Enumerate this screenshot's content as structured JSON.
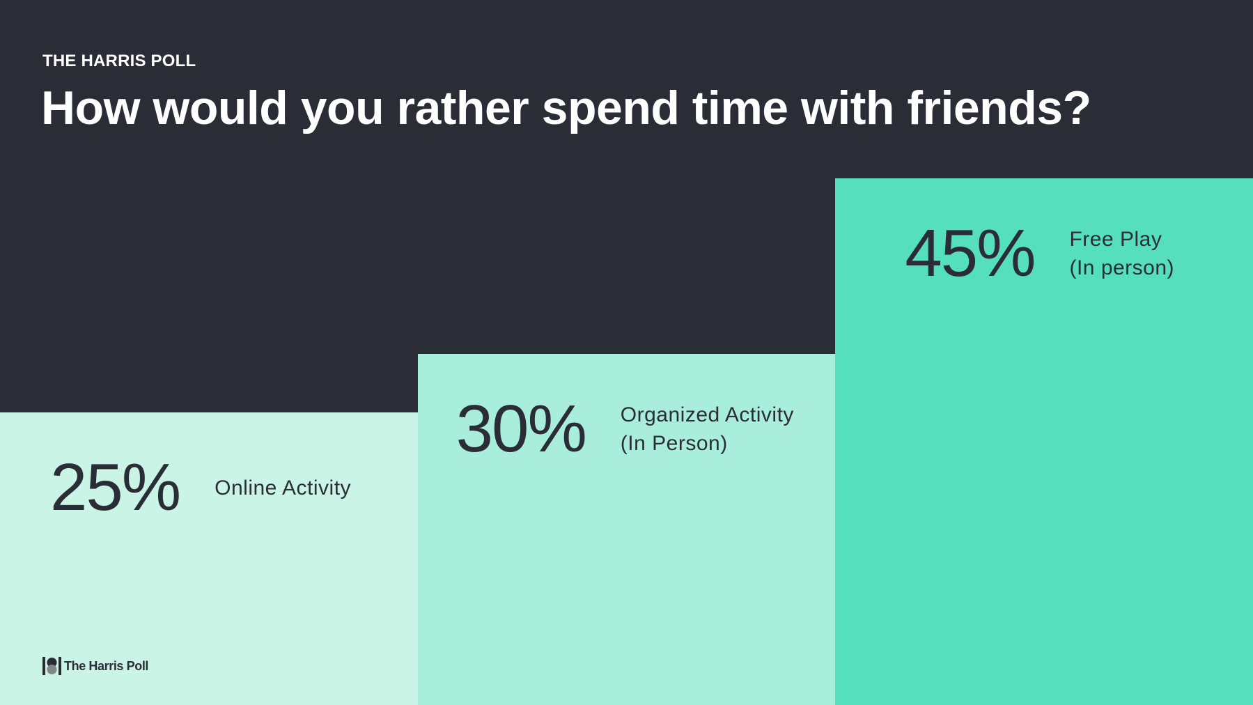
{
  "header": "THE HARRIS POLL",
  "chart_data": {
    "type": "bar",
    "title": "How would you rather spend time with friends?",
    "categories": [
      "Online Activity",
      "Organized Activity\n(In Person)",
      "Free Play\n(In person)"
    ],
    "values": [
      25,
      30,
      45
    ],
    "value_labels": [
      "25%",
      "30%",
      "45%"
    ],
    "colors": [
      "#c9f4e6",
      "#a8eedb",
      "#55dfbd"
    ]
  },
  "footer": "The Harris Poll"
}
